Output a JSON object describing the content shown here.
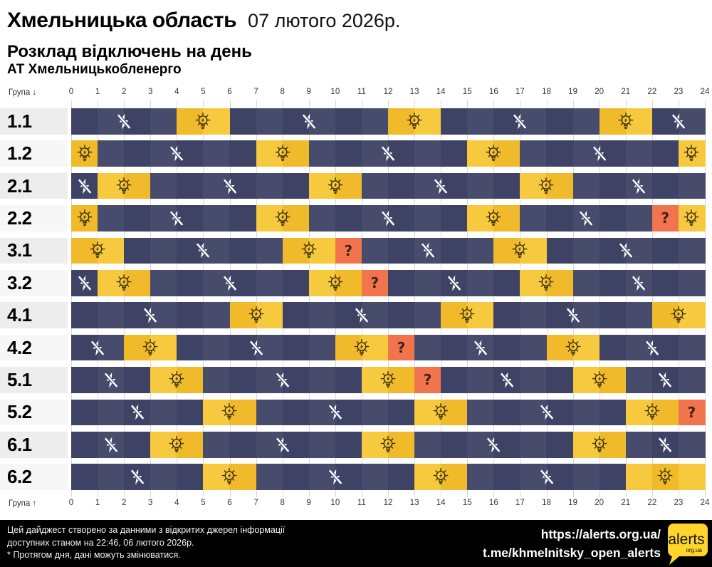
{
  "header": {
    "region": "Хмельницька область",
    "date": "07 лютого 2026р.",
    "title": "Розклад відключень на день",
    "company": "АТ Хмельницькобленерго"
  },
  "axis": {
    "top_label": "Група ↓",
    "bottom_label": "Група ↑",
    "hours": [
      0,
      1,
      2,
      3,
      4,
      5,
      6,
      7,
      8,
      9,
      10,
      11,
      12,
      13,
      14,
      15,
      16,
      17,
      18,
      19,
      20,
      21,
      22,
      23,
      24
    ]
  },
  "icons": {
    "off": "no-power-icon",
    "on": "bulb-icon",
    "maybe": "question-mark",
    "maybe_glyph": "?"
  },
  "colors": {
    "off_even": "#3e4365",
    "off_odd": "#474b6c",
    "off_mid": "#434769",
    "on_even": "#f0ba2b",
    "on_odd": "#f7c93e",
    "maybe": "#f2744d",
    "question": "#3f2318",
    "bulb_stroke": "#3a3108",
    "label_strip_a": "#ededed",
    "label_strip_b": "#f7f7f7",
    "gridline": "#d8d8d8",
    "footer_bg": "#000000",
    "logo_yellow": "#ffd42c"
  },
  "chart_data": {
    "type": "heatmap",
    "title": "Розклад відключень на день",
    "x_label_hours_range": [
      0,
      24
    ],
    "states": {
      "off": "dark cell with crossed-out lightning (outage)",
      "on": "yellow cell with light bulb (power on)",
      "maybe": "orange cell with question mark (uncertain)"
    },
    "groups": [
      {
        "label": "1.1",
        "segments": [
          {
            "state": "off",
            "from": 0,
            "to": 4
          },
          {
            "state": "on",
            "from": 4,
            "to": 6
          },
          {
            "state": "off",
            "from": 6,
            "to": 12
          },
          {
            "state": "on",
            "from": 12,
            "to": 14
          },
          {
            "state": "off",
            "from": 14,
            "to": 20
          },
          {
            "state": "on",
            "from": 20,
            "to": 22
          },
          {
            "state": "off",
            "from": 22,
            "to": 24
          }
        ]
      },
      {
        "label": "1.2",
        "segments": [
          {
            "state": "on",
            "from": 0,
            "to": 1
          },
          {
            "state": "off",
            "from": 1,
            "to": 7
          },
          {
            "state": "on",
            "from": 7,
            "to": 9
          },
          {
            "state": "off",
            "from": 9,
            "to": 15
          },
          {
            "state": "on",
            "from": 15,
            "to": 17
          },
          {
            "state": "off",
            "from": 17,
            "to": 23
          },
          {
            "state": "on",
            "from": 23,
            "to": 24
          }
        ]
      },
      {
        "label": "2.1",
        "segments": [
          {
            "state": "off",
            "from": 0,
            "to": 1
          },
          {
            "state": "on",
            "from": 1,
            "to": 3
          },
          {
            "state": "off",
            "from": 3,
            "to": 9
          },
          {
            "state": "on",
            "from": 9,
            "to": 11
          },
          {
            "state": "off",
            "from": 11,
            "to": 17
          },
          {
            "state": "on",
            "from": 17,
            "to": 19
          },
          {
            "state": "off",
            "from": 19,
            "to": 24
          }
        ]
      },
      {
        "label": "2.2",
        "segments": [
          {
            "state": "on",
            "from": 0,
            "to": 1
          },
          {
            "state": "off",
            "from": 1,
            "to": 7
          },
          {
            "state": "on",
            "from": 7,
            "to": 9
          },
          {
            "state": "off",
            "from": 9,
            "to": 15
          },
          {
            "state": "on",
            "from": 15,
            "to": 17
          },
          {
            "state": "off",
            "from": 17,
            "to": 22
          },
          {
            "state": "maybe",
            "from": 22,
            "to": 23
          },
          {
            "state": "on",
            "from": 23,
            "to": 24
          }
        ]
      },
      {
        "label": "3.1",
        "segments": [
          {
            "state": "on",
            "from": 0,
            "to": 2
          },
          {
            "state": "off",
            "from": 2,
            "to": 8
          },
          {
            "state": "on",
            "from": 8,
            "to": 10
          },
          {
            "state": "maybe",
            "from": 10,
            "to": 11
          },
          {
            "state": "off",
            "from": 11,
            "to": 16
          },
          {
            "state": "on",
            "from": 16,
            "to": 18
          },
          {
            "state": "off",
            "from": 18,
            "to": 24
          }
        ]
      },
      {
        "label": "3.2",
        "segments": [
          {
            "state": "off",
            "from": 0,
            "to": 1
          },
          {
            "state": "on",
            "from": 1,
            "to": 3
          },
          {
            "state": "off",
            "from": 3,
            "to": 9
          },
          {
            "state": "on",
            "from": 9,
            "to": 11
          },
          {
            "state": "maybe",
            "from": 11,
            "to": 12
          },
          {
            "state": "off",
            "from": 12,
            "to": 17
          },
          {
            "state": "on",
            "from": 17,
            "to": 19
          },
          {
            "state": "off",
            "from": 19,
            "to": 24
          }
        ]
      },
      {
        "label": "4.1",
        "segments": [
          {
            "state": "off",
            "from": 0,
            "to": 6
          },
          {
            "state": "on",
            "from": 6,
            "to": 8
          },
          {
            "state": "off",
            "from": 8,
            "to": 14
          },
          {
            "state": "on",
            "from": 14,
            "to": 16
          },
          {
            "state": "off",
            "from": 16,
            "to": 22
          },
          {
            "state": "on",
            "from": 22,
            "to": 24
          }
        ]
      },
      {
        "label": "4.2",
        "segments": [
          {
            "state": "off",
            "from": 0,
            "to": 2
          },
          {
            "state": "on",
            "from": 2,
            "to": 4
          },
          {
            "state": "off",
            "from": 4,
            "to": 10
          },
          {
            "state": "on",
            "from": 10,
            "to": 12
          },
          {
            "state": "maybe",
            "from": 12,
            "to": 13
          },
          {
            "state": "off",
            "from": 13,
            "to": 18
          },
          {
            "state": "on",
            "from": 18,
            "to": 20
          },
          {
            "state": "off",
            "from": 20,
            "to": 24
          }
        ]
      },
      {
        "label": "5.1",
        "segments": [
          {
            "state": "off",
            "from": 0,
            "to": 3
          },
          {
            "state": "on",
            "from": 3,
            "to": 5
          },
          {
            "state": "off",
            "from": 5,
            "to": 11
          },
          {
            "state": "on",
            "from": 11,
            "to": 13
          },
          {
            "state": "maybe",
            "from": 13,
            "to": 14
          },
          {
            "state": "off",
            "from": 14,
            "to": 19
          },
          {
            "state": "on",
            "from": 19,
            "to": 21
          },
          {
            "state": "off",
            "from": 21,
            "to": 24
          }
        ]
      },
      {
        "label": "5.2",
        "segments": [
          {
            "state": "off",
            "from": 0,
            "to": 5
          },
          {
            "state": "on",
            "from": 5,
            "to": 7
          },
          {
            "state": "off",
            "from": 7,
            "to": 13
          },
          {
            "state": "on",
            "from": 13,
            "to": 15
          },
          {
            "state": "off",
            "from": 15,
            "to": 21
          },
          {
            "state": "on",
            "from": 21,
            "to": 23
          },
          {
            "state": "maybe",
            "from": 23,
            "to": 24
          }
        ]
      },
      {
        "label": "6.1",
        "segments": [
          {
            "state": "off",
            "from": 0,
            "to": 3
          },
          {
            "state": "on",
            "from": 3,
            "to": 5
          },
          {
            "state": "off",
            "from": 5,
            "to": 11
          },
          {
            "state": "on",
            "from": 11,
            "to": 13
          },
          {
            "state": "off",
            "from": 13,
            "to": 19
          },
          {
            "state": "on",
            "from": 19,
            "to": 21
          },
          {
            "state": "off",
            "from": 21,
            "to": 24
          }
        ]
      },
      {
        "label": "6.2",
        "segments": [
          {
            "state": "off",
            "from": 0,
            "to": 5
          },
          {
            "state": "on",
            "from": 5,
            "to": 7
          },
          {
            "state": "off",
            "from": 7,
            "to": 13
          },
          {
            "state": "on",
            "from": 13,
            "to": 15
          },
          {
            "state": "off",
            "from": 15,
            "to": 21
          },
          {
            "state": "on",
            "from": 21,
            "to": 24
          }
        ]
      }
    ]
  },
  "footer": {
    "line1": "Цей дайджест створено за данними з відкритих джерел інформації",
    "line2": "доступних станом на 22:46, 06 лютого 2026р.",
    "line3": "* Протягом дня, дані можуть змінюватися.",
    "url1": "https://alerts.org.ua/",
    "url2": "t.me/khmelnitsky_open_alerts",
    "logo_text": "alerts",
    "logo_sub": "org.ua"
  }
}
